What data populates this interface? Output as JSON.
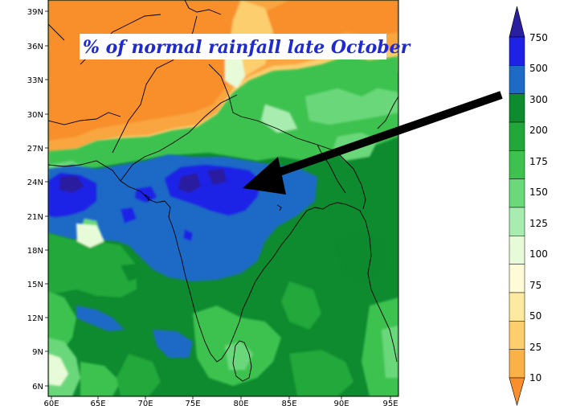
{
  "map": {
    "title": "% of normal rainfall late October",
    "lat_labels": [
      "39N",
      "36N",
      "33N",
      "30N",
      "27N",
      "24N",
      "21N",
      "18N",
      "15N",
      "12N",
      "9N",
      "6N"
    ],
    "lon_labels": [
      "60E",
      "65E",
      "70E",
      "75E",
      "80E",
      "85E",
      "90E",
      "95E"
    ]
  },
  "colorbar": {
    "labels": [
      "750",
      "500",
      "300",
      "200",
      "175",
      "150",
      "125",
      "100",
      "75",
      "50",
      "25",
      "10"
    ],
    "colors": [
      "#2a1f9e",
      "#1e22e6",
      "#1e6bc6",
      "#0e8a2f",
      "#22a83a",
      "#3dc24f",
      "#6bd87a",
      "#a8ecb0",
      "#e8fbd8",
      "#fffbd6",
      "#fde9a0",
      "#fcce6e",
      "#f9b148",
      "#f88f2c"
    ]
  },
  "annotation": {
    "arrow": "pointer-arrow"
  }
}
